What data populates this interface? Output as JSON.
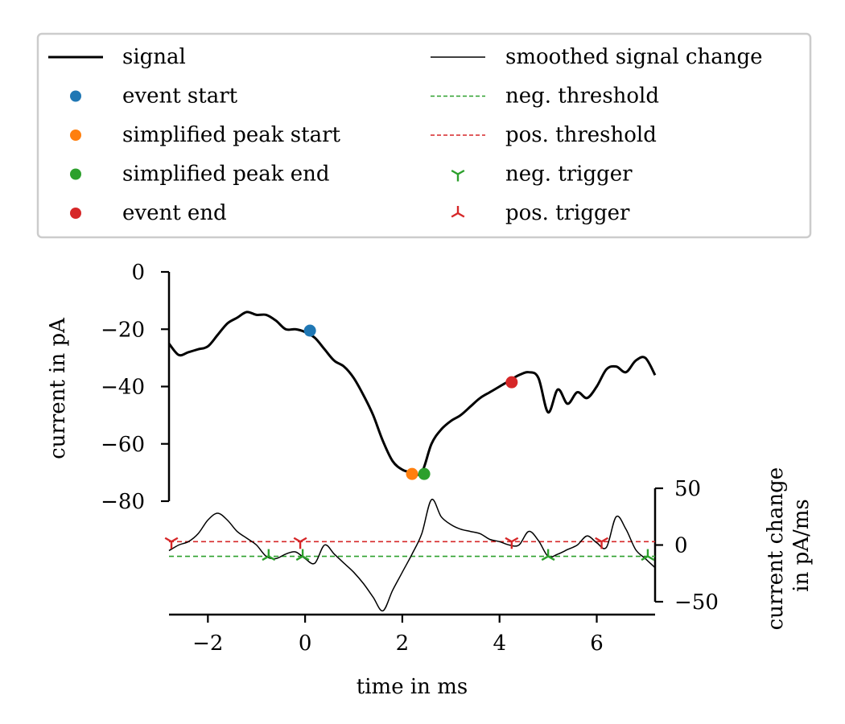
{
  "chart_data": {
    "type": "line",
    "x_unit": "ms",
    "xlim": [
      -2.8,
      7.2
    ],
    "x_ticks": [
      -2,
      0,
      2,
      4,
      6
    ],
    "x_tick_labels": [
      "−2",
      "0",
      "2",
      "4",
      "6"
    ],
    "xlabel": "time in ms",
    "top_panel": {
      "ylabel": "current in pA",
      "ylim": [
        -80,
        0
      ],
      "y_ticks": [
        0,
        -20,
        -40,
        -60,
        -80
      ],
      "y_tick_labels": [
        "0",
        "−20",
        "−40",
        "−60",
        "−80"
      ],
      "signal": {
        "name": "signal",
        "color": "#000000",
        "x": [
          -2.8,
          -2.6,
          -2.4,
          -2.2,
          -2.0,
          -1.8,
          -1.6,
          -1.4,
          -1.2,
          -1.0,
          -0.8,
          -0.6,
          -0.4,
          -0.2,
          0.0,
          0.2,
          0.4,
          0.6,
          0.8,
          1.0,
          1.2,
          1.4,
          1.6,
          1.8,
          2.0,
          2.2,
          2.4,
          2.6,
          2.8,
          3.0,
          3.2,
          3.4,
          3.6,
          3.8,
          4.0,
          4.2,
          4.4,
          4.6,
          4.8,
          5.0,
          5.2,
          5.4,
          5.6,
          5.8,
          6.0,
          6.2,
          6.4,
          6.6,
          6.8,
          7.0,
          7.2
        ],
        "y": [
          -25,
          -29,
          -28,
          -27,
          -26,
          -22,
          -18,
          -16,
          -14,
          -15,
          -15,
          -17,
          -20,
          -20,
          -21,
          -23,
          -27,
          -31,
          -33,
          -37,
          -43,
          -50,
          -59,
          -66,
          -69,
          -70,
          -70,
          -60,
          -55,
          -52,
          -50,
          -47,
          -44,
          -42,
          -40,
          -38,
          -36,
          -35,
          -37,
          -49,
          -41,
          -46,
          -42,
          -44,
          -40,
          -34,
          -33,
          -35,
          -31,
          -30,
          -36
        ]
      },
      "event_start": {
        "name": "event start",
        "color": "#1f77b4",
        "x": 0.1,
        "y": -20.5
      },
      "simplified_peak_start": {
        "name": "simplified peak start",
        "color": "#ff7f0e",
        "x": 2.2,
        "y": -70.5
      },
      "simplified_peak_end": {
        "name": "simplified peak end",
        "color": "#2ca02c",
        "x": 2.45,
        "y": -70.5
      },
      "event_end": {
        "name": "event end",
        "color": "#d62728",
        "x": 4.25,
        "y": -38.5
      }
    },
    "bottom_panel": {
      "ylabel": "current change in pA/ms",
      "ylabel_lines": [
        "current change",
        "in pA/ms"
      ],
      "ylim": [
        -50,
        50
      ],
      "y_ticks": [
        50,
        0,
        -50
      ],
      "y_tick_labels": [
        "50",
        "0",
        "−50"
      ],
      "smoothed_change": {
        "name": "smoothed signal change",
        "color": "#000000",
        "x": [
          -2.8,
          -2.6,
          -2.4,
          -2.2,
          -2.0,
          -1.8,
          -1.6,
          -1.4,
          -1.2,
          -1.0,
          -0.8,
          -0.6,
          -0.4,
          -0.2,
          0.0,
          0.2,
          0.4,
          0.6,
          0.8,
          1.0,
          1.2,
          1.4,
          1.6,
          1.8,
          2.0,
          2.2,
          2.4,
          2.6,
          2.8,
          3.0,
          3.2,
          3.4,
          3.6,
          3.8,
          4.0,
          4.2,
          4.4,
          4.6,
          4.8,
          5.0,
          5.2,
          5.4,
          5.6,
          5.8,
          6.0,
          6.2,
          6.4,
          6.6,
          6.8,
          7.0,
          7.2
        ],
        "y": [
          -5,
          0,
          3,
          10,
          22,
          28,
          22,
          12,
          6,
          0,
          -10,
          -12,
          -8,
          -6,
          -12,
          -16,
          0,
          -8,
          -16,
          -24,
          -34,
          -46,
          -58,
          -40,
          -24,
          -8,
          10,
          40,
          25,
          18,
          14,
          12,
          10,
          5,
          3,
          0,
          0,
          12,
          4,
          -10,
          -8,
          -4,
          0,
          8,
          2,
          -2,
          25,
          14,
          -4,
          -12,
          -20
        ]
      },
      "neg_threshold": {
        "name": "neg. threshold",
        "color": "#2ca02c",
        "value": -10
      },
      "pos_threshold": {
        "name": "pos. threshold",
        "color": "#d62728",
        "value": 3
      },
      "neg_triggers": {
        "name": "neg. trigger",
        "color": "#2ca02c",
        "x": [
          -0.75,
          -0.05,
          5.0,
          7.05
        ],
        "y": -10
      },
      "pos_triggers": {
        "name": "pos. trigger",
        "color": "#d62728",
        "x": [
          -2.75,
          -0.1,
          4.25,
          6.1
        ],
        "y": 3
      }
    },
    "legend": {
      "placement": "top",
      "left_column": [
        {
          "kind": "line",
          "label": "signal",
          "color": "#000000"
        },
        {
          "kind": "dot",
          "label": "event start",
          "color": "#1f77b4"
        },
        {
          "kind": "dot",
          "label": "simplified peak start",
          "color": "#ff7f0e"
        },
        {
          "kind": "dot",
          "label": "simplified peak end",
          "color": "#2ca02c"
        },
        {
          "kind": "dot",
          "label": "event end",
          "color": "#d62728"
        }
      ],
      "right_column": [
        {
          "kind": "thin-line",
          "label": "smoothed signal change",
          "color": "#000000"
        },
        {
          "kind": "dashed",
          "label": "neg. threshold",
          "color": "#2ca02c"
        },
        {
          "kind": "dashed",
          "label": "pos. threshold",
          "color": "#d62728"
        },
        {
          "kind": "tri-up",
          "label": "neg. trigger",
          "color": "#2ca02c"
        },
        {
          "kind": "tri-down",
          "label": "pos. trigger",
          "color": "#d62728"
        }
      ]
    }
  }
}
